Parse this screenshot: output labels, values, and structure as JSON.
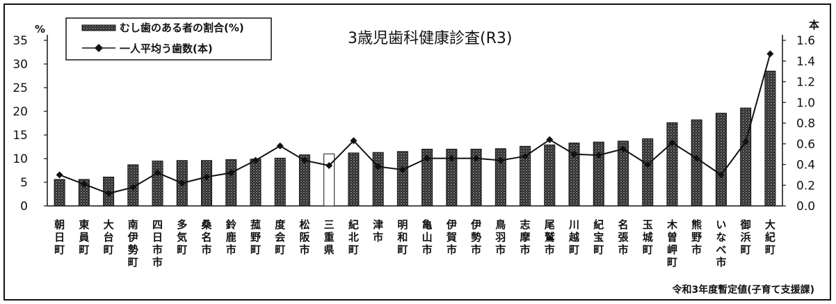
{
  "chart_data": {
    "type": "bar",
    "title": "3歳児歯科健康診査(R3)",
    "note": "令和3年度暫定値(子育て支援課)",
    "y_left_unit": "%",
    "y_right_unit": "本",
    "ylim_left": [
      0,
      35
    ],
    "ylim_right": [
      0.0,
      1.6
    ],
    "y_left_ticks": [
      "0",
      "5",
      "10",
      "15",
      "20",
      "25",
      "30",
      "35"
    ],
    "y_right_ticks": [
      "0.0",
      "0.2",
      "0.4",
      "0.6",
      "0.8",
      "1.0",
      "1.2",
      "1.4",
      "1.6"
    ],
    "legend_position": "top-left",
    "categories": [
      "朝日町",
      "東員町",
      "大台町",
      "南伊勢町",
      "四日市市",
      "多気町",
      "桑名市",
      "鈴鹿市",
      "菰野町",
      "度会町",
      "松阪市",
      "三重県",
      "紀北町",
      "津市",
      "明和町",
      "亀山市",
      "伊賀市",
      "伊勢市",
      "鳥羽市",
      "志摩市",
      "尾鷲市",
      "川越町",
      "紀宝町",
      "名張市",
      "玉城町",
      "木曽岬町",
      "熊野市",
      "いなべ市",
      "御浜町",
      "大紀町"
    ],
    "highlight_category": "三重県",
    "series": [
      {
        "name": "むし歯のある者の割合(%)",
        "type": "bar",
        "axis": "left",
        "values": [
          5.6,
          5.6,
          6.1,
          8.7,
          9.5,
          9.6,
          9.6,
          9.8,
          9.9,
          10.1,
          10.8,
          11.0,
          11.2,
          11.3,
          11.5,
          12.0,
          12.0,
          12.0,
          12.1,
          12.6,
          12.9,
          13.3,
          13.5,
          13.7,
          14.2,
          17.6,
          18.2,
          19.6,
          20.7,
          28.5
        ]
      },
      {
        "name": "一人平均う歯数(本)",
        "type": "line",
        "axis": "right",
        "values": [
          0.3,
          0.21,
          0.12,
          0.18,
          0.32,
          0.22,
          0.28,
          0.32,
          0.44,
          0.58,
          0.44,
          0.39,
          0.63,
          0.38,
          0.35,
          0.46,
          0.46,
          0.46,
          0.44,
          0.48,
          0.64,
          0.5,
          0.49,
          0.55,
          0.4,
          0.61,
          0.46,
          0.3,
          0.62,
          1.47
        ]
      }
    ]
  }
}
